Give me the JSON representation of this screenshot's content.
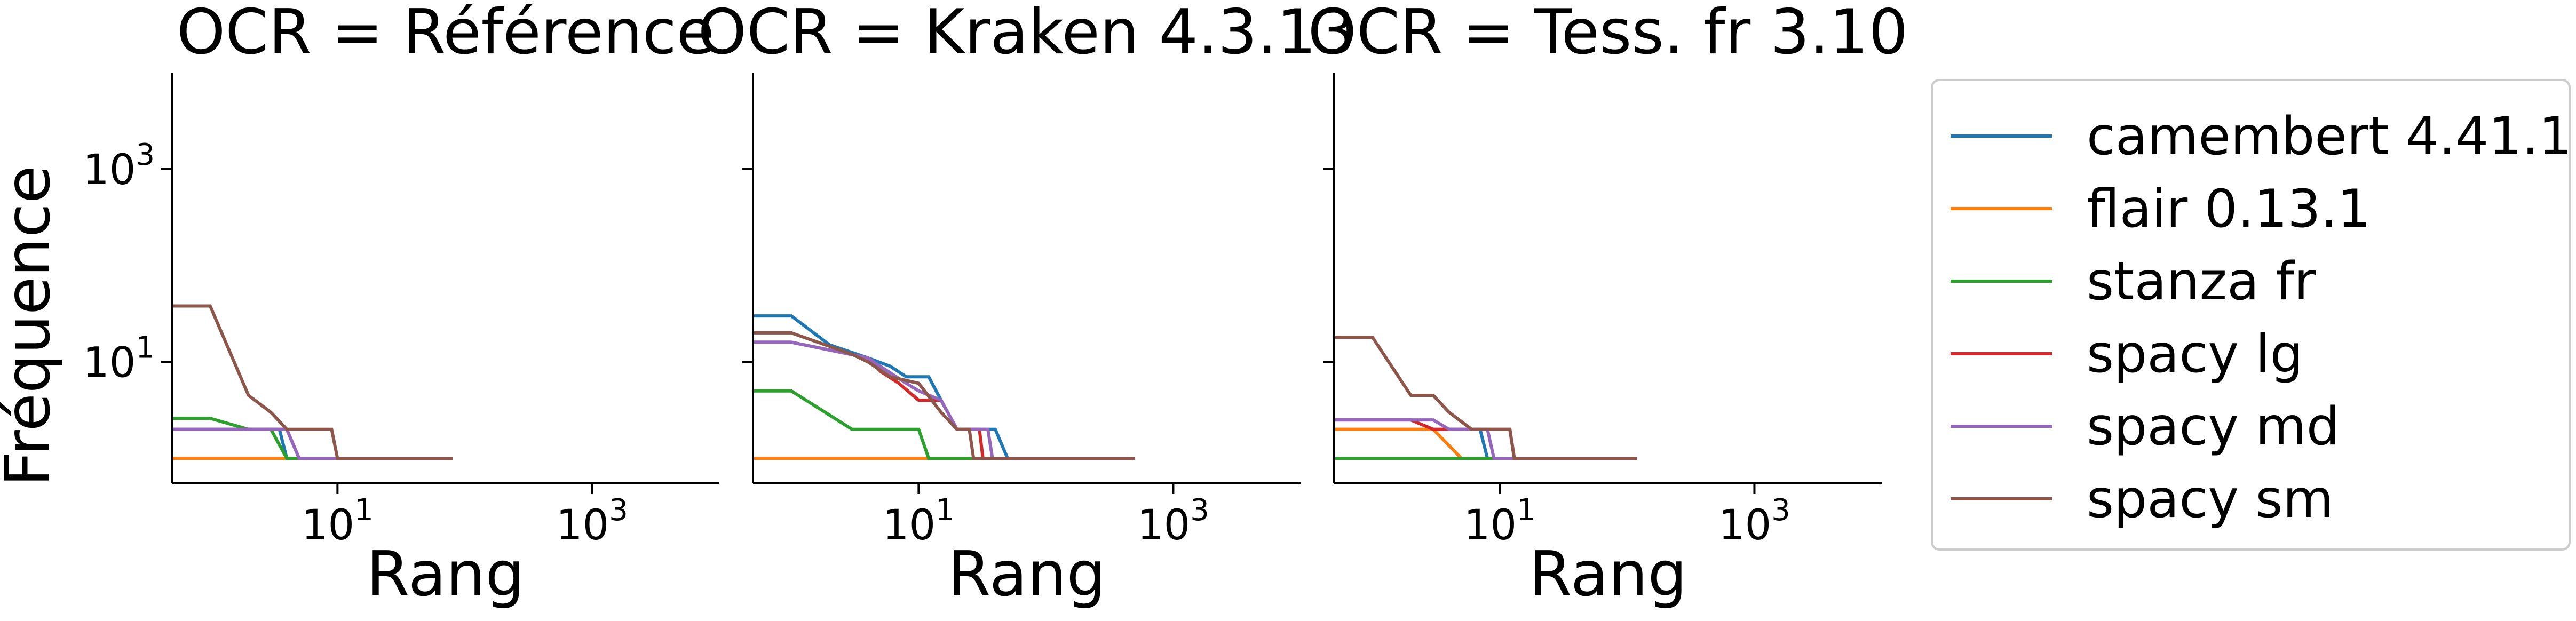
{
  "chart_data": [
    {
      "type": "line",
      "title": "OCR = Référence",
      "xlabel": "Rang",
      "ylabel": "Fréquence",
      "xscale": "log",
      "yscale": "log",
      "xlim": [
        0.5,
        10000
      ],
      "ylim": [
        0.55,
        10000
      ],
      "xticks": [
        {
          "value": 10,
          "label": "10^1"
        },
        {
          "value": 1000,
          "label": "10^3"
        }
      ],
      "yticks": [
        {
          "value": 10,
          "label": "10^1"
        },
        {
          "value": 1000,
          "label": "10^3"
        }
      ],
      "series": [
        {
          "name": "camembert 4.41.1",
          "color": "#1f77b4",
          "points": [
            [
              0.5,
              2
            ],
            [
              2,
              2
            ],
            [
              3.5,
              2
            ],
            [
              4,
              1
            ],
            [
              80,
              1
            ]
          ]
        },
        {
          "name": "flair 0.13.1",
          "color": "#ff7f0e",
          "points": [
            [
              0.5,
              1
            ],
            [
              80,
              1
            ]
          ]
        },
        {
          "name": "stanza fr",
          "color": "#2ca02c",
          "points": [
            [
              0.5,
              2.6
            ],
            [
              1,
              2.6
            ],
            [
              2,
              2
            ],
            [
              3,
              2
            ],
            [
              4,
              1
            ],
            [
              80,
              1
            ]
          ]
        },
        {
          "name": "spacy lg",
          "color": "#d62728",
          "points": [
            [
              0.5,
              2
            ],
            [
              3,
              2
            ],
            [
              4,
              2
            ],
            [
              5,
              1
            ],
            [
              80,
              1
            ]
          ]
        },
        {
          "name": "spacy md",
          "color": "#9467bd",
          "points": [
            [
              0.5,
              2
            ],
            [
              3,
              2
            ],
            [
              4,
              2
            ],
            [
              5,
              1
            ],
            [
              80,
              1
            ]
          ]
        },
        {
          "name": "spacy sm",
          "color": "#8c564b",
          "points": [
            [
              0.5,
              38
            ],
            [
              1,
              38
            ],
            [
              2,
              4.5
            ],
            [
              3,
              3
            ],
            [
              4,
              2
            ],
            [
              9,
              2
            ],
            [
              10,
              1
            ],
            [
              80,
              1
            ]
          ]
        }
      ]
    },
    {
      "type": "line",
      "title": "OCR = Kraken 4.3.13",
      "xlabel": "Rang",
      "ylabel": "",
      "xscale": "log",
      "yscale": "log",
      "xlim": [
        0.5,
        10000
      ],
      "ylim": [
        0.55,
        10000
      ],
      "xticks": [
        {
          "value": 10,
          "label": "10^1"
        },
        {
          "value": 1000,
          "label": "10^3"
        }
      ],
      "yticks": [
        {
          "value": 10,
          "label": "",
          "show_tick": true
        },
        {
          "value": 1000,
          "label": "",
          "show_tick": true
        }
      ],
      "series": [
        {
          "name": "camembert 4.41.1",
          "color": "#1f77b4",
          "points": [
            [
              0.5,
              30
            ],
            [
              1,
              30
            ],
            [
              2,
              15
            ],
            [
              4,
              11
            ],
            [
              6,
              9
            ],
            [
              8,
              7
            ],
            [
              12,
              7
            ],
            [
              15,
              4
            ],
            [
              20,
              2
            ],
            [
              40,
              2
            ],
            [
              50,
              1
            ],
            [
              500,
              1
            ]
          ]
        },
        {
          "name": "flair 0.13.1",
          "color": "#ff7f0e",
          "points": [
            [
              0.5,
              1
            ],
            [
              500,
              1
            ]
          ]
        },
        {
          "name": "stanza fr",
          "color": "#2ca02c",
          "points": [
            [
              0.5,
              5
            ],
            [
              1,
              5
            ],
            [
              3,
              2
            ],
            [
              10,
              2
            ],
            [
              12,
              1
            ],
            [
              500,
              1
            ]
          ]
        },
        {
          "name": "spacy lg",
          "color": "#d62728",
          "points": [
            [
              0.5,
              16
            ],
            [
              1,
              16
            ],
            [
              4,
              11
            ],
            [
              5,
              8
            ],
            [
              7,
              6
            ],
            [
              10,
              4
            ],
            [
              15,
              4
            ],
            [
              20,
              2
            ],
            [
              30,
              2
            ],
            [
              32,
              1
            ],
            [
              500,
              1
            ]
          ]
        },
        {
          "name": "spacy md",
          "color": "#9467bd",
          "points": [
            [
              0.5,
              16
            ],
            [
              1,
              16
            ],
            [
              4,
              11
            ],
            [
              5,
              9
            ],
            [
              8,
              6
            ],
            [
              10,
              5
            ],
            [
              15,
              4
            ],
            [
              20,
              2
            ],
            [
              35,
              2
            ],
            [
              38,
              1
            ],
            [
              500,
              1
            ]
          ]
        },
        {
          "name": "spacy sm",
          "color": "#8c564b",
          "points": [
            [
              0.5,
              20
            ],
            [
              1,
              20
            ],
            [
              3,
              12
            ],
            [
              4,
              10
            ],
            [
              6,
              7
            ],
            [
              10,
              6
            ],
            [
              15,
              3
            ],
            [
              20,
              2
            ],
            [
              25,
              2
            ],
            [
              27,
              1
            ],
            [
              500,
              1
            ]
          ]
        }
      ]
    },
    {
      "type": "line",
      "title": "OCR = Tess. fr 3.10",
      "xlabel": "Rang",
      "ylabel": "",
      "xscale": "log",
      "yscale": "log",
      "xlim": [
        0.5,
        10000
      ],
      "ylim": [
        0.55,
        10000
      ],
      "xticks": [
        {
          "value": 10,
          "label": "10^1"
        },
        {
          "value": 1000,
          "label": "10^3"
        }
      ],
      "yticks": [
        {
          "value": 10,
          "label": "",
          "show_tick": true
        },
        {
          "value": 1000,
          "label": "",
          "show_tick": true
        }
      ],
      "series": [
        {
          "name": "camembert 4.41.1",
          "color": "#1f77b4",
          "points": [
            [
              0.5,
              2
            ],
            [
              7,
              2
            ],
            [
              8,
              1
            ],
            [
              120,
              1
            ]
          ]
        },
        {
          "name": "flair 0.13.1",
          "color": "#ff7f0e",
          "points": [
            [
              0.5,
              2
            ],
            [
              3,
              2
            ],
            [
              5,
              1
            ],
            [
              120,
              1
            ]
          ]
        },
        {
          "name": "stanza fr",
          "color": "#2ca02c",
          "points": [
            [
              0.5,
              1
            ],
            [
              120,
              1
            ]
          ]
        },
        {
          "name": "spacy lg",
          "color": "#d62728",
          "points": [
            [
              0.5,
              2.5
            ],
            [
              2,
              2.5
            ],
            [
              3,
              2
            ],
            [
              12,
              2
            ],
            [
              13,
              1
            ],
            [
              120,
              1
            ]
          ]
        },
        {
          "name": "spacy md",
          "color": "#9467bd",
          "points": [
            [
              0.5,
              2.5
            ],
            [
              3,
              2.5
            ],
            [
              4,
              2
            ],
            [
              8,
              2
            ],
            [
              9,
              1
            ],
            [
              120,
              1
            ]
          ]
        },
        {
          "name": "spacy sm",
          "color": "#8c564b",
          "points": [
            [
              0.5,
              18
            ],
            [
              1,
              18
            ],
            [
              2,
              4.5
            ],
            [
              3,
              4.5
            ],
            [
              4,
              3
            ],
            [
              6,
              2
            ],
            [
              12,
              2
            ],
            [
              13,
              1
            ],
            [
              120,
              1
            ]
          ]
        }
      ]
    }
  ],
  "legend": {
    "placement": "right",
    "items": [
      {
        "label": "camembert 4.41.1",
        "color": "#1f77b4"
      },
      {
        "label": "flair 0.13.1",
        "color": "#ff7f0e"
      },
      {
        "label": "stanza fr",
        "color": "#2ca02c"
      },
      {
        "label": "spacy lg",
        "color": "#d62728"
      },
      {
        "label": "spacy md",
        "color": "#9467bd"
      },
      {
        "label": "spacy sm",
        "color": "#8c564b"
      }
    ]
  }
}
